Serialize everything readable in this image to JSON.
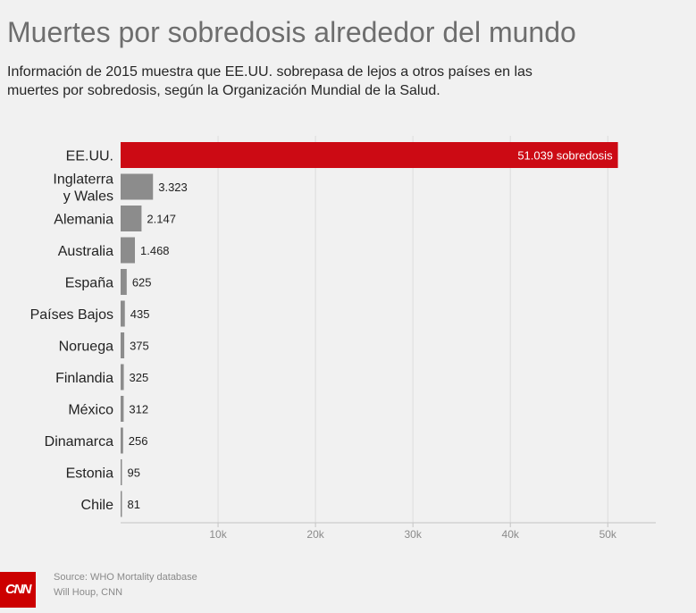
{
  "header": {
    "title": "Muertes por sobredosis alrededor del mundo",
    "subtitle": "Información de 2015 muestra que EE.UU. sobrepasa de lejos a otros países en las muertes por sobredosis, según la Organización Mundial de la Salud."
  },
  "chart_data": {
    "type": "bar",
    "orientation": "horizontal",
    "categories": [
      [
        "EE.UU."
      ],
      [
        "Inglaterra",
        "y Wales"
      ],
      [
        "Alemania"
      ],
      [
        "Australia"
      ],
      [
        "España"
      ],
      [
        "Países Bajos"
      ],
      [
        "Noruega"
      ],
      [
        "Finlandia"
      ],
      [
        "México"
      ],
      [
        "Dinamarca"
      ],
      [
        "Estonia"
      ],
      [
        "Chile"
      ]
    ],
    "values": [
      51039,
      3323,
      2147,
      1468,
      625,
      435,
      375,
      325,
      312,
      256,
      95,
      81
    ],
    "value_labels": [
      "51.039 sobredosis",
      "3.323",
      "2.147",
      "1.468",
      "625",
      "435",
      "375",
      "325",
      "312",
      "256",
      "95",
      "81"
    ],
    "highlight_index": 0,
    "xlim": [
      0,
      55000
    ],
    "xticks": [
      10000,
      20000,
      30000,
      40000,
      50000
    ],
    "xtick_labels": [
      "10k",
      "20k",
      "30k",
      "40k",
      "50k"
    ],
    "grid": true,
    "colors": {
      "highlight": "#cc0a14",
      "bar": "#8c8c8c",
      "grid": "#dcdcdc",
      "axis": "#c4c4c4"
    }
  },
  "footer": {
    "logo_text": "CNN",
    "source": "Source: WHO Mortality database",
    "credit": "Will Houp, CNN"
  }
}
